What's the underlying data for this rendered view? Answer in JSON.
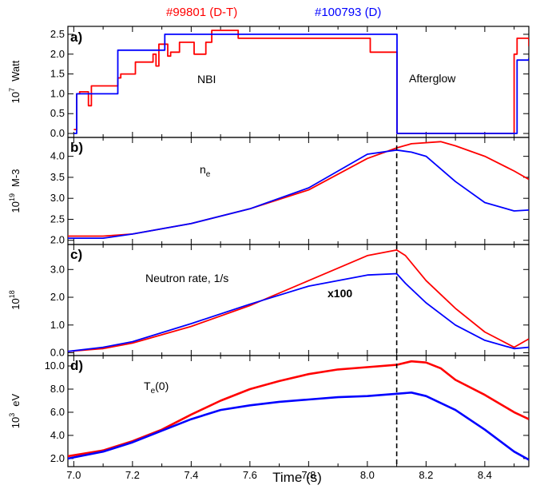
{
  "legend": {
    "dt_label": "#99801 (D-T)",
    "d_label": "#100793 (D)",
    "dt_color": "#ff0000",
    "d_color": "#0000ff"
  },
  "xaxis": {
    "label": "Time (s)",
    "range": [
      6.98,
      8.55
    ],
    "ticks": [
      "7.0",
      "7.2",
      "7.4",
      "7.6",
      "7.8",
      "8.0",
      "8.2",
      "8.4"
    ]
  },
  "marker": {
    "time": 8.1,
    "style": "dashed"
  },
  "panels": [
    {
      "tag": "a)",
      "ylabel_exp": "10",
      "ylabel_sup": "7",
      "ylabel_unit": "Watt",
      "ylim": [
        -0.1,
        2.7
      ],
      "yticks": [
        "0.0",
        "0.5",
        "1.0",
        "1.5",
        "2.0",
        "2.5"
      ],
      "annotations": [
        {
          "text": "NBI",
          "color": "#000000"
        },
        {
          "text": "Afterglow",
          "color": "#000000"
        }
      ]
    },
    {
      "tag": "b)",
      "ylabel_exp": "10",
      "ylabel_sup": "19",
      "ylabel_unit": "M-3",
      "ylim": [
        1.9,
        4.45
      ],
      "yticks": [
        "2.0",
        "2.5",
        "3.0",
        "3.5",
        "4.0"
      ],
      "annotations": [
        {
          "text": "n",
          "sub": "e",
          "color": "#1f3a93"
        }
      ]
    },
    {
      "tag": "c)",
      "ylabel_exp": "10",
      "ylabel_sup": "18",
      "ylabel_unit": "",
      "ylim": [
        -0.1,
        3.9
      ],
      "yticks": [
        "0.0",
        "1.0",
        "2.0",
        "3.0"
      ],
      "annotations": [
        {
          "text": "Neutron rate, 1/s",
          "color": "#000000"
        },
        {
          "text": "x100",
          "color": "#3a3ad0"
        }
      ]
    },
    {
      "tag": "d)",
      "ylabel_exp": "10",
      "ylabel_sup": "3",
      "ylabel_unit": "eV",
      "ylim": [
        1.3,
        10.9
      ],
      "yticks": [
        "2.0",
        "4.0",
        "6.0",
        "8.0",
        "10.0"
      ],
      "annotations": [
        {
          "text": "T",
          "sub": "e",
          "tail": "(0)",
          "color": "#1f3a93"
        }
      ]
    }
  ],
  "chart_data": [
    {
      "type": "line",
      "title": "a)",
      "xlabel": "Time (s)",
      "ylabel": "10^7 Watt",
      "ylim": [
        -0.1,
        2.7
      ],
      "series": [
        {
          "name": "#99801 (D-T)",
          "color": "#ff0000",
          "step": true,
          "x": [
            7.0,
            7.01,
            7.02,
            7.05,
            7.05,
            7.06,
            7.14,
            7.15,
            7.16,
            7.2,
            7.21,
            7.26,
            7.27,
            7.28,
            7.29,
            7.31,
            7.32,
            7.33,
            7.35,
            7.36,
            7.4,
            7.41,
            7.44,
            7.45,
            7.46,
            7.47,
            7.55,
            7.56,
            8.0,
            8.01,
            8.1,
            8.101,
            8.49,
            8.5,
            8.51,
            8.55
          ],
          "y": [
            0.1,
            1.0,
            1.05,
            1.05,
            0.7,
            1.2,
            1.2,
            1.4,
            1.5,
            1.5,
            1.8,
            1.8,
            2.0,
            1.7,
            2.25,
            2.25,
            1.95,
            2.05,
            2.05,
            2.3,
            2.3,
            2.0,
            2.0,
            2.3,
            2.3,
            2.6,
            2.6,
            2.4,
            2.4,
            2.05,
            2.05,
            0.0,
            0.0,
            2.0,
            2.4,
            2.2
          ]
        },
        {
          "name": "#100793 (D)",
          "color": "#0000ff",
          "step": true,
          "x": [
            7.0,
            7.01,
            7.14,
            7.15,
            7.3,
            7.31,
            8.1,
            8.101,
            8.5,
            8.51,
            8.55
          ],
          "y": [
            0.0,
            1.0,
            1.0,
            2.1,
            2.1,
            2.5,
            2.5,
            0.0,
            0.0,
            1.85,
            1.9
          ]
        }
      ]
    },
    {
      "type": "line",
      "title": "b)",
      "xlabel": "Time (s)",
      "ylabel": "10^19 M-3",
      "ylim": [
        1.9,
        4.45
      ],
      "series": [
        {
          "name": "#99801 (D-T)",
          "color": "#ff0000",
          "x": [
            6.98,
            7.1,
            7.2,
            7.4,
            7.6,
            7.8,
            8.0,
            8.1,
            8.15,
            8.25,
            8.3,
            8.4,
            8.5,
            8.55
          ],
          "y": [
            2.1,
            2.1,
            2.15,
            2.4,
            2.75,
            3.2,
            3.95,
            4.2,
            4.3,
            4.35,
            4.25,
            4.0,
            3.65,
            3.45
          ]
        },
        {
          "name": "#100793 (D)",
          "color": "#0000ff",
          "x": [
            6.98,
            7.1,
            7.2,
            7.4,
            7.6,
            7.8,
            8.0,
            8.1,
            8.15,
            8.2,
            8.3,
            8.4,
            8.5,
            8.55
          ],
          "y": [
            2.05,
            2.05,
            2.15,
            2.4,
            2.75,
            3.25,
            4.05,
            4.15,
            4.1,
            4.0,
            3.4,
            2.9,
            2.7,
            2.72
          ]
        }
      ]
    },
    {
      "type": "line",
      "title": "c)",
      "xlabel": "Time (s)",
      "ylabel": "10^18",
      "ylim": [
        -0.1,
        3.9
      ],
      "series": [
        {
          "name": "#99801 (D-T)",
          "color": "#ff0000",
          "x": [
            6.98,
            7.1,
            7.2,
            7.4,
            7.6,
            7.8,
            8.0,
            8.1,
            8.13,
            8.2,
            8.3,
            8.4,
            8.5,
            8.55
          ],
          "y": [
            0.05,
            0.15,
            0.35,
            0.95,
            1.7,
            2.6,
            3.5,
            3.7,
            3.5,
            2.6,
            1.6,
            0.75,
            0.2,
            0.5
          ]
        },
        {
          "name": "#100793 (D)",
          "color": "#0000ff",
          "x": [
            6.98,
            7.1,
            7.2,
            7.4,
            7.6,
            7.8,
            8.0,
            8.1,
            8.13,
            8.2,
            8.3,
            8.4,
            8.5,
            8.55
          ],
          "y": [
            0.05,
            0.2,
            0.4,
            1.05,
            1.75,
            2.4,
            2.8,
            2.85,
            2.5,
            1.8,
            1.0,
            0.45,
            0.15,
            0.2
          ]
        }
      ]
    },
    {
      "type": "line",
      "title": "d)",
      "xlabel": "Time (s)",
      "ylabel": "10^3 eV",
      "ylim": [
        1.3,
        10.9
      ],
      "series": [
        {
          "name": "#99801 (D-T)",
          "color": "#ff0000",
          "x": [
            6.98,
            7.1,
            7.2,
            7.3,
            7.4,
            7.5,
            7.6,
            7.7,
            7.8,
            7.9,
            8.0,
            8.1,
            8.15,
            8.2,
            8.25,
            8.3,
            8.4,
            8.5,
            8.55
          ],
          "y": [
            2.2,
            2.7,
            3.5,
            4.5,
            5.8,
            7.0,
            8.0,
            8.7,
            9.3,
            9.7,
            9.9,
            10.1,
            10.4,
            10.3,
            9.8,
            8.8,
            7.5,
            6.0,
            5.4
          ]
        },
        {
          "name": "#100793 (D)",
          "color": "#0000ff",
          "x": [
            6.98,
            7.1,
            7.2,
            7.3,
            7.4,
            7.5,
            7.6,
            7.7,
            7.8,
            7.9,
            8.0,
            8.1,
            8.15,
            8.2,
            8.3,
            8.4,
            8.5,
            8.55
          ],
          "y": [
            2.0,
            2.6,
            3.4,
            4.4,
            5.4,
            6.2,
            6.6,
            6.9,
            7.1,
            7.3,
            7.4,
            7.6,
            7.7,
            7.4,
            6.2,
            4.5,
            2.6,
            1.9
          ]
        }
      ]
    }
  ]
}
